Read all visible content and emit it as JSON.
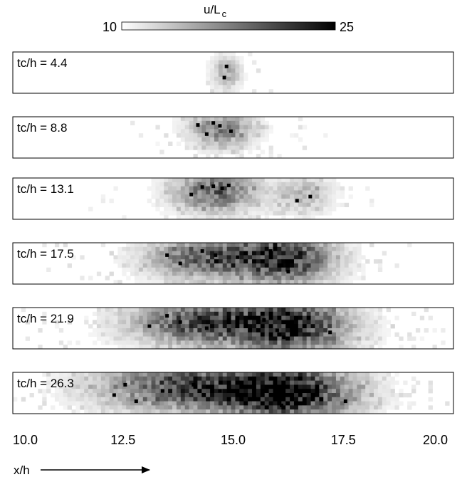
{
  "chart_data": {
    "type": "heatmap",
    "colorbar": {
      "label_main": "u/L",
      "label_sub": "c",
      "min_label": "10",
      "max_label": "25",
      "range": [
        10,
        25
      ],
      "low_color": "#ffffff",
      "high_color": "#000000"
    },
    "xlim": [
      10.0,
      20.0
    ],
    "x_tick_labels": [
      "10.0",
      "12.5",
      "15.0",
      "17.5",
      "20.0"
    ],
    "x_ticks": [
      10.0,
      12.5,
      15.0,
      17.5,
      20.0
    ],
    "xlabel": "x/h",
    "panels": [
      {
        "label": "tc/h = 4.4",
        "blobs": [
          {
            "x": 14.85,
            "y": 0.5,
            "sx": 0.22,
            "sy": 0.28,
            "amp": 0.32
          }
        ],
        "hot": [
          [
            14.85,
            0.35
          ],
          [
            14.8,
            0.62
          ]
        ]
      },
      {
        "label": "tc/h = 8.8",
        "blobs": [
          {
            "x": 14.75,
            "y": 0.3,
            "sx": 0.5,
            "sy": 0.3,
            "amp": 0.48
          }
        ],
        "hot": [
          [
            14.2,
            0.2
          ],
          [
            14.55,
            0.15
          ],
          [
            14.7,
            0.22
          ],
          [
            14.95,
            0.35
          ],
          [
            14.4,
            0.42
          ]
        ]
      },
      {
        "label": "tc/h = 13.1",
        "blobs": [
          {
            "x": 14.6,
            "y": 0.32,
            "sx": 0.65,
            "sy": 0.35,
            "amp": 0.6
          },
          {
            "x": 16.6,
            "y": 0.4,
            "sx": 0.45,
            "sy": 0.3,
            "amp": 0.28
          }
        ],
        "hot": [
          [
            14.3,
            0.22
          ],
          [
            14.55,
            0.2
          ],
          [
            14.75,
            0.25
          ],
          [
            14.05,
            0.4
          ],
          [
            16.75,
            0.45
          ],
          [
            16.45,
            0.55
          ],
          [
            14.9,
            0.18
          ]
        ]
      },
      {
        "label": "tc/h = 17.5",
        "blobs": [
          {
            "x": 14.4,
            "y": 0.35,
            "sx": 0.9,
            "sy": 0.36,
            "amp": 0.62
          },
          {
            "x": 16.2,
            "y": 0.38,
            "sx": 0.75,
            "sy": 0.42,
            "amp": 0.78
          }
        ],
        "hot": [
          [
            13.5,
            0.3
          ],
          [
            14.3,
            0.2
          ],
          [
            14.6,
            0.3
          ],
          [
            15.1,
            0.35
          ],
          [
            16.1,
            0.55
          ],
          [
            16.25,
            0.7
          ],
          [
            15.85,
            0.2
          ],
          [
            13.8,
            0.5
          ]
        ]
      },
      {
        "label": "tc/h = 21.9",
        "blobs": [
          {
            "x": 14.2,
            "y": 0.35,
            "sx": 1.05,
            "sy": 0.38,
            "amp": 0.66
          },
          {
            "x": 16.3,
            "y": 0.45,
            "sx": 0.9,
            "sy": 0.45,
            "amp": 0.86
          }
        ],
        "hot": [
          [
            13.5,
            0.2
          ],
          [
            13.8,
            0.35
          ],
          [
            14.4,
            0.5
          ],
          [
            14.9,
            0.3
          ],
          [
            16.0,
            0.55
          ],
          [
            16.15,
            0.72
          ],
          [
            15.7,
            0.3
          ],
          [
            13.1,
            0.45
          ],
          [
            17.2,
            0.6
          ]
        ]
      },
      {
        "label": "tc/h = 26.3",
        "blobs": [
          {
            "x": 13.9,
            "y": 0.35,
            "sx": 1.35,
            "sy": 0.4,
            "amp": 0.68
          },
          {
            "x": 16.2,
            "y": 0.48,
            "sx": 1.05,
            "sy": 0.48,
            "amp": 0.92
          }
        ],
        "hot": [
          [
            12.55,
            0.3
          ],
          [
            12.3,
            0.55
          ],
          [
            13.4,
            0.45
          ],
          [
            14.1,
            0.3
          ],
          [
            14.7,
            0.45
          ],
          [
            15.9,
            0.55
          ],
          [
            16.1,
            0.8
          ],
          [
            16.9,
            0.4
          ],
          [
            17.55,
            0.7
          ],
          [
            12.8,
            0.7
          ]
        ]
      }
    ]
  }
}
